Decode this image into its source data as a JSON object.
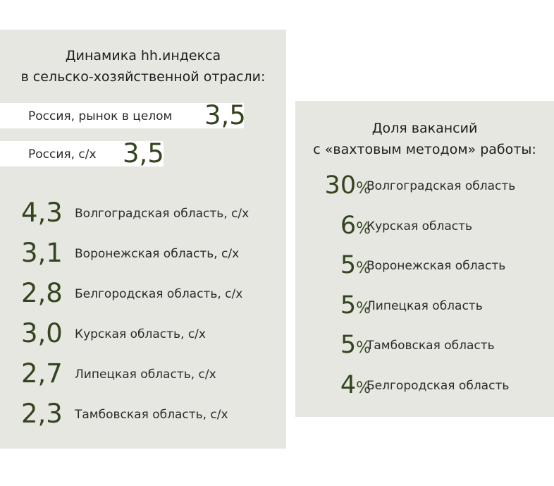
{
  "left": {
    "title_line1": "Динамика hh.индекса",
    "title_line2": "в сельско-хозяйственной отрасли:",
    "russia_market": {
      "label": "Россия, рынок в целом",
      "value": "3,5"
    },
    "russia_ag": {
      "label": "Россия, с/х",
      "value": "3,5"
    },
    "regions": [
      {
        "value": "4,3",
        "label": "Волгоградская область, с/х"
      },
      {
        "value": "3,1",
        "label": "Воронежская область, с/х"
      },
      {
        "value": "2,8",
        "label": "Белгородская область, с/х"
      },
      {
        "value": "3,0",
        "label": "Курская область, с/х"
      },
      {
        "value": "2,7",
        "label": "Липецкая область, с/х"
      },
      {
        "value": "2,3",
        "label": "Тамбовская область, с/х"
      }
    ]
  },
  "right": {
    "title_line1": "Доля вакансий",
    "title_line2": "с «вахтовым методом» работы:",
    "percent_sign": "%",
    "regions": [
      {
        "value": "30",
        "label": "Волгоградская область"
      },
      {
        "value": "6",
        "label": "Курская область"
      },
      {
        "value": "5",
        "label": "Воронежская область"
      },
      {
        "value": "5",
        "label": "Липецкая область"
      },
      {
        "value": "5",
        "label": "Тамбовская область"
      },
      {
        "value": "4",
        "label": "Белгородская область"
      }
    ]
  },
  "colors": {
    "panel_background": "#e6e7e1",
    "value_green": "#34441f",
    "text": "#2a2a2a"
  }
}
